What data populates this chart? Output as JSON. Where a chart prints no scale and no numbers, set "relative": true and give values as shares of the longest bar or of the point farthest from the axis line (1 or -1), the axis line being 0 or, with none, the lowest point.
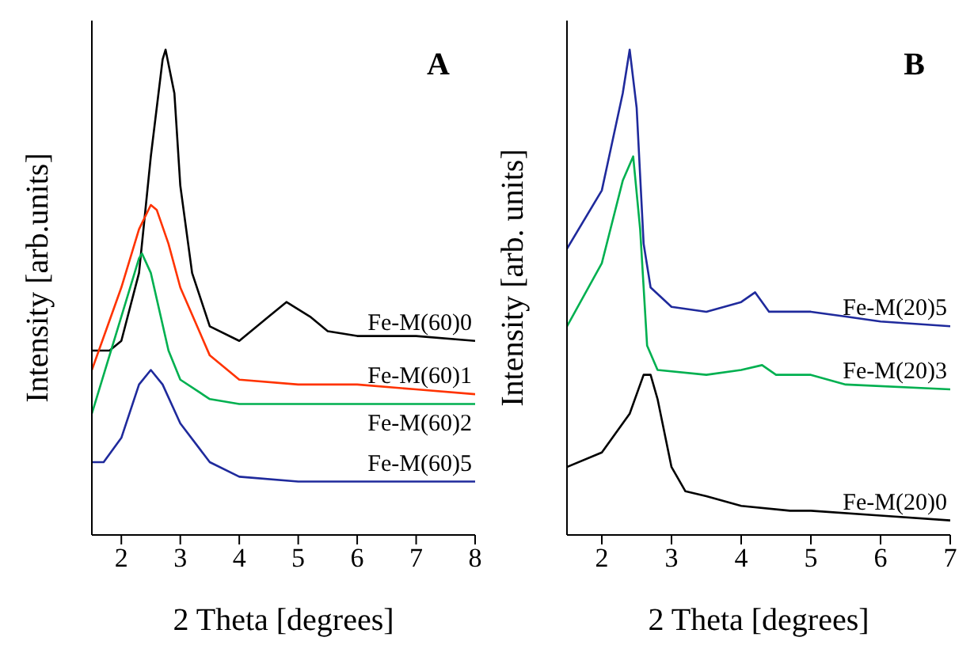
{
  "chart_data": [
    {
      "type": "line",
      "relative": true,
      "xlabel": "2 Theta [degrees]",
      "ylabel": "Intensity [arb.units]",
      "annotations": [
        "A"
      ],
      "xlim": [
        1.5,
        8
      ],
      "xticks": [
        2,
        3,
        4,
        5,
        6,
        7,
        8
      ],
      "tick_labels": "x",
      "legend": false,
      "grid": false,
      "marker": "none",
      "line_style": "solid",
      "series": [
        {
          "name": "Fe-M(60)0",
          "color": "#000000",
          "x": [
            1.5,
            1.8,
            2.0,
            2.3,
            2.5,
            2.7,
            2.75,
            2.9,
            3.0,
            3.2,
            3.5,
            4.0,
            4.5,
            4.8,
            5.2,
            5.5,
            6,
            7,
            8
          ],
          "values": [
            0.38,
            0.38,
            0.4,
            0.54,
            0.78,
            0.98,
            1,
            0.91,
            0.72,
            0.54,
            0.43,
            0.4,
            0.45,
            0.48,
            0.45,
            0.42,
            0.41,
            0.41,
            0.4
          ]
        },
        {
          "name": "Fe-M(60)1",
          "color": "#ff3300",
          "x": [
            1.5,
            2,
            2.3,
            2.5,
            2.6,
            2.8,
            3,
            3.5,
            4,
            5,
            6,
            7,
            8
          ],
          "values": [
            0.34,
            0.51,
            0.63,
            0.68,
            0.67,
            0.6,
            0.51,
            0.37,
            0.32,
            0.31,
            0.31,
            0.3,
            0.29
          ]
        },
        {
          "name": "Fe-M(60)2",
          "color": "#00b050",
          "x": [
            1.5,
            2,
            2.3,
            2.35,
            2.5,
            2.8,
            3,
            3.5,
            4,
            5,
            8
          ],
          "values": [
            0.25,
            0.45,
            0.57,
            0.58,
            0.54,
            0.38,
            0.32,
            0.28,
            0.27,
            0.27,
            0.27
          ]
        },
        {
          "name": "Fe-M(60)5",
          "color": "#1f2a9c",
          "x": [
            1.5,
            1.7,
            2,
            2.3,
            2.5,
            2.7,
            3,
            3.5,
            4,
            5,
            8
          ],
          "values": [
            0.15,
            0.15,
            0.2,
            0.31,
            0.34,
            0.31,
            0.23,
            0.15,
            0.12,
            0.11,
            0.11
          ]
        }
      ]
    },
    {
      "type": "line",
      "relative": true,
      "xlabel": "2 Theta [degrees]",
      "ylabel": "Intensity [arb. units]",
      "annotations": [
        "B"
      ],
      "xlim": [
        1.5,
        7
      ],
      "xticks": [
        2,
        3,
        4,
        5,
        6,
        7
      ],
      "tick_labels": "x",
      "legend": false,
      "grid": false,
      "marker": "none",
      "line_style": "solid",
      "series": [
        {
          "name": "Fe-M(20)5",
          "color": "#1f2a9c",
          "x": [
            1.5,
            2,
            2.3,
            2.4,
            2.5,
            2.6,
            2.7,
            3,
            3.5,
            4,
            4.2,
            4.4,
            5,
            5.5,
            6,
            7
          ],
          "values": [
            0.59,
            0.71,
            0.91,
            1,
            0.88,
            0.6,
            0.51,
            0.47,
            0.46,
            0.48,
            0.5,
            0.46,
            0.46,
            0.45,
            0.44,
            0.43
          ]
        },
        {
          "name": "Fe-M(20)3",
          "color": "#00b050",
          "x": [
            1.5,
            2,
            2.3,
            2.45,
            2.55,
            2.65,
            2.8,
            3.5,
            4,
            4.3,
            4.5,
            5,
            5.5,
            7
          ],
          "values": [
            0.43,
            0.56,
            0.73,
            0.78,
            0.63,
            0.39,
            0.34,
            0.33,
            0.34,
            0.35,
            0.33,
            0.33,
            0.31,
            0.3
          ]
        },
        {
          "name": "Fe-M(20)0",
          "color": "#000000",
          "x": [
            1.5,
            2,
            2.4,
            2.6,
            2.7,
            2.8,
            3,
            3.2,
            3.5,
            4,
            4.7,
            5,
            6,
            7
          ],
          "values": [
            0.14,
            0.17,
            0.25,
            0.33,
            0.33,
            0.28,
            0.14,
            0.09,
            0.08,
            0.06,
            0.05,
            0.05,
            0.04,
            0.03
          ]
        }
      ]
    }
  ]
}
